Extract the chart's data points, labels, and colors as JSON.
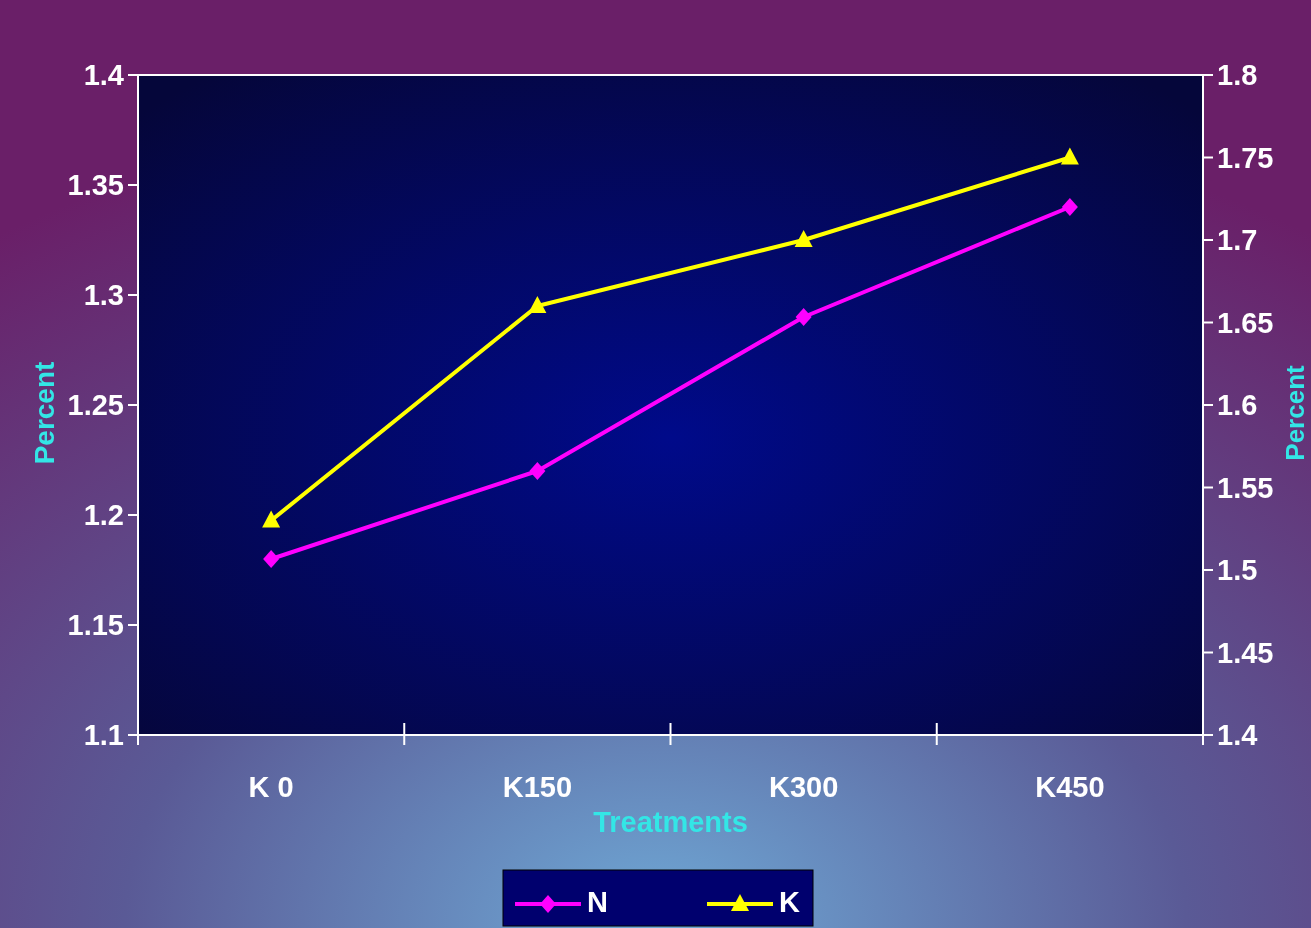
{
  "chart_data": {
    "type": "line",
    "xlabel": "Treatments",
    "ylabel": "Percent",
    "y2label": "Percent",
    "categories": [
      "K 0",
      "K150",
      "K300",
      "K450"
    ],
    "series": [
      {
        "name": "N",
        "color": "#ff00ff",
        "values": [
          1.18,
          1.22,
          1.29,
          1.34
        ],
        "marker": "diamond"
      },
      {
        "name": "K",
        "color": "#ffff00",
        "values": [
          1.53,
          1.66,
          1.7,
          1.75
        ],
        "marker": "triangle",
        "axis": "y2"
      }
    ],
    "ylim": [
      1.1,
      1.4
    ],
    "yticks": [
      1.1,
      1.15,
      1.2,
      1.25,
      1.3,
      1.35,
      1.4
    ],
    "y2lim": [
      1.4,
      1.8
    ],
    "y2ticks": [
      1.4,
      1.45,
      1.5,
      1.55,
      1.6,
      1.65,
      1.7,
      1.75,
      1.8
    ],
    "legend": "bottom",
    "grid": false,
    "line_style": "solid"
  }
}
